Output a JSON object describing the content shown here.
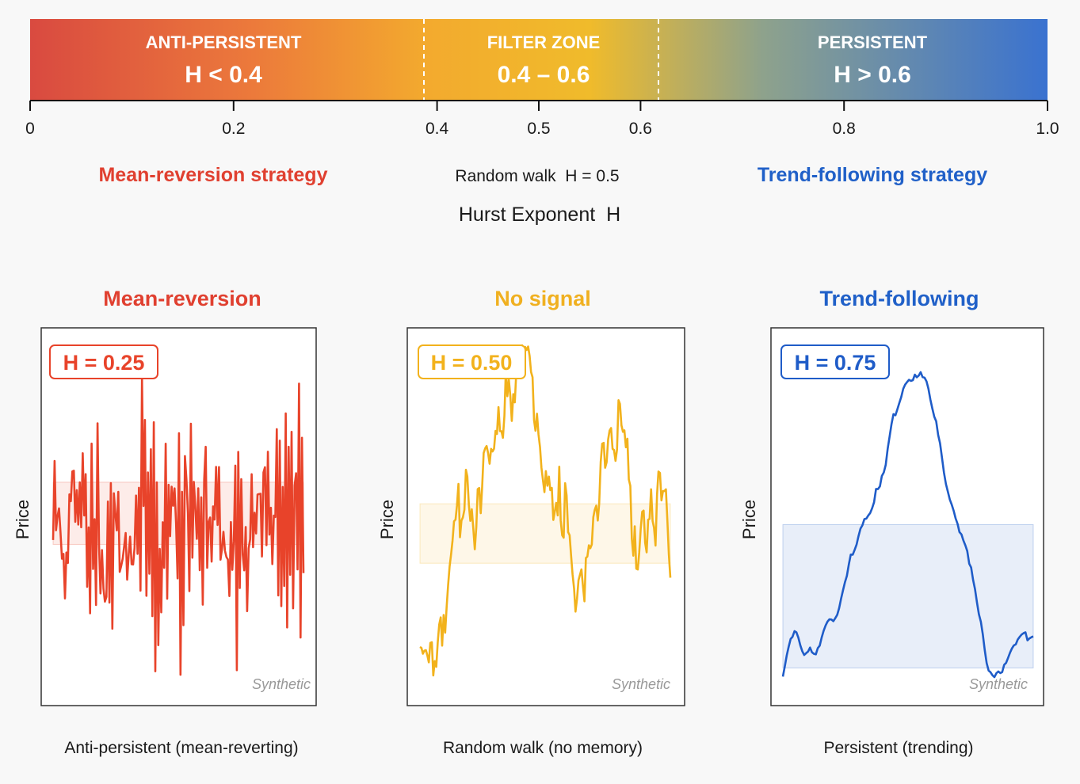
{
  "scale": {
    "zones": [
      {
        "id": "anti",
        "label": "ANTI-PERSISTENT",
        "range_text": "H < 0.4",
        "from": 0.0,
        "to": 0.4
      },
      {
        "id": "filter",
        "label": "FILTER ZONE",
        "range_text": "0.4 – 0.6",
        "from": 0.4,
        "to": 0.6
      },
      {
        "id": "persist",
        "label": "PERSISTENT",
        "range_text": "H > 0.6",
        "from": 0.6,
        "to": 1.0
      }
    ],
    "ticks": [
      0,
      0.2,
      0.4,
      0.5,
      0.6,
      0.8,
      1.0
    ],
    "tick_labels": [
      "0",
      "0.2",
      "0.4",
      "0.5",
      "0.6",
      "0.8",
      "1.0"
    ],
    "strategy_left": "Mean-reversion strategy",
    "random_walk_note": "Random walk  H = 0.5",
    "strategy_right": "Trend-following strategy",
    "axis_title": "Hurst Exponent  H",
    "gradient_colors": [
      "#d94a40",
      "#ef8a3a",
      "#f3ae2d",
      "#f2bd2a",
      "#88a08f",
      "#3a72d0"
    ]
  },
  "chart_data": [
    {
      "type": "line",
      "title": "Mean-reversion",
      "badge": "H = 0.25",
      "hurst": 0.25,
      "ylabel": "Price",
      "caption": "Anti-persistent (mean-reverting)",
      "watermark": "Synthetic",
      "color": "#e8432a",
      "seed": 11,
      "mean_level": 0.44,
      "band": [
        0.44,
        0.65
      ]
    },
    {
      "type": "line",
      "title": "No signal",
      "badge": "H = 0.50",
      "hurst": 0.5,
      "ylabel": "Price",
      "caption": "Random walk (no memory)",
      "watermark": "Synthetic",
      "color": "#f2b21c",
      "seed": 29,
      "band": [
        0.34,
        0.52
      ]
    },
    {
      "type": "line",
      "title": "Trend-following",
      "badge": "H = 0.75",
      "hurst": 0.75,
      "ylabel": "Price",
      "caption": "Persistent (trending)",
      "watermark": "Synthetic",
      "color": "#1f5cc8",
      "seed": 7,
      "band": [
        0.03,
        0.5
      ]
    }
  ]
}
